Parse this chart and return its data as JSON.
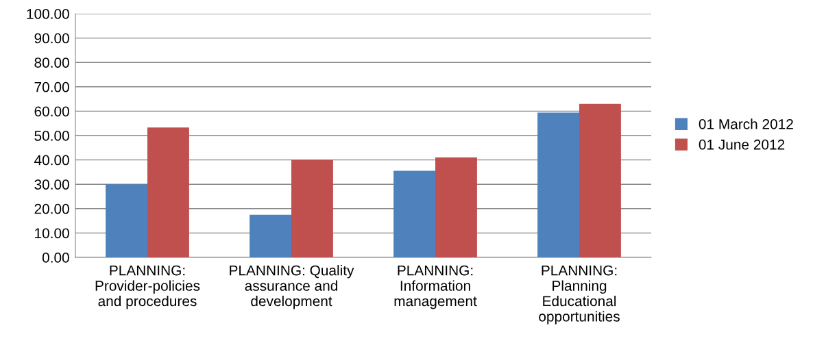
{
  "chart_data": {
    "type": "bar",
    "categories": [
      "PLANNING:\nProvider-policies\nand procedures",
      "PLANNING: Quality\nassurance and\ndevelopment",
      "PLANNING:\nInformation\nmanagement",
      "PLANNING:\nPlanning\nEducational\nopportunities"
    ],
    "series": [
      {
        "name": "01 March 2012",
        "color": "#4f81bd",
        "values": [
          30.0,
          17.5,
          35.5,
          59.4
        ]
      },
      {
        "name": "01 June 2012",
        "color": "#c0504d",
        "values": [
          53.3,
          40.0,
          41.0,
          63.0
        ]
      }
    ],
    "ylim": [
      0,
      100
    ],
    "yticks": [
      {
        "value": 0,
        "label": "0.00"
      },
      {
        "value": 10,
        "label": "10.00"
      },
      {
        "value": 20,
        "label": "20.00"
      },
      {
        "value": 30,
        "label": "30.00"
      },
      {
        "value": 40,
        "label": "40.00"
      },
      {
        "value": 50,
        "label": "50.00"
      },
      {
        "value": 60,
        "label": "60.00"
      },
      {
        "value": 70,
        "label": "70.00"
      },
      {
        "value": 80,
        "label": "80.00"
      },
      {
        "value": 90,
        "label": "90.00"
      },
      {
        "value": 100,
        "label": "100.00"
      }
    ],
    "grid": "y",
    "legend": "right"
  }
}
